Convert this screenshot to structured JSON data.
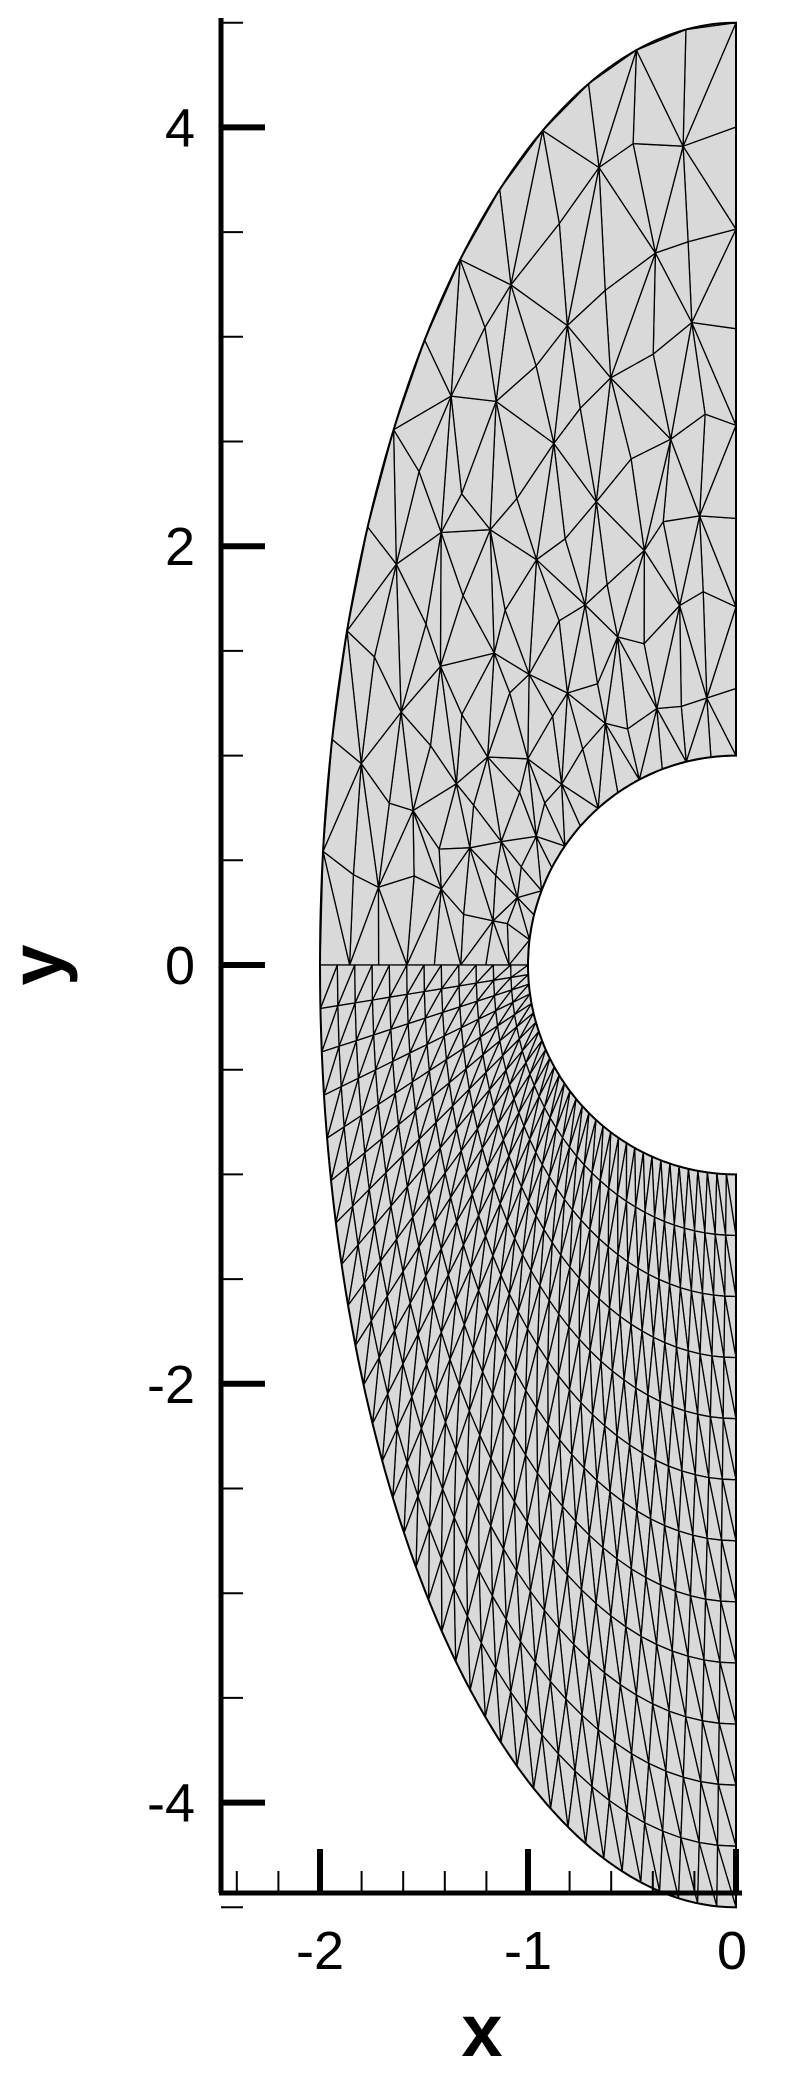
{
  "chart_data": {
    "type": "mesh",
    "xlabel": "x",
    "ylabel": "y",
    "xlim": [
      -2.5,
      0
    ],
    "ylim": [
      -4.5,
      4.5
    ],
    "x_ticks": [
      {
        "value": -2,
        "label": "-2"
      },
      {
        "value": -1,
        "label": "-1"
      },
      {
        "value": 0,
        "label": "0"
      }
    ],
    "y_ticks": [
      {
        "value": -4,
        "label": "-4"
      },
      {
        "value": -2,
        "label": "-2"
      },
      {
        "value": 0,
        "label": "0"
      },
      {
        "value": 2,
        "label": "2"
      },
      {
        "value": 4,
        "label": "4"
      }
    ],
    "x_minor_step": 0.2,
    "y_minor_step": 0.5,
    "domain": {
      "shape": "half-annulus",
      "center": [
        0,
        0
      ],
      "inner_radius": 1,
      "outer_x_semi_axis": 2,
      "outer_y_semi_axis": 4.5
    },
    "upper_mesh": {
      "style": "unstructured triangles",
      "fill_color": "#d9d9d9"
    },
    "lower_mesh": {
      "style": "structured triangles",
      "fill_color": "#d9d9d9"
    },
    "edge_color": "#000000"
  }
}
